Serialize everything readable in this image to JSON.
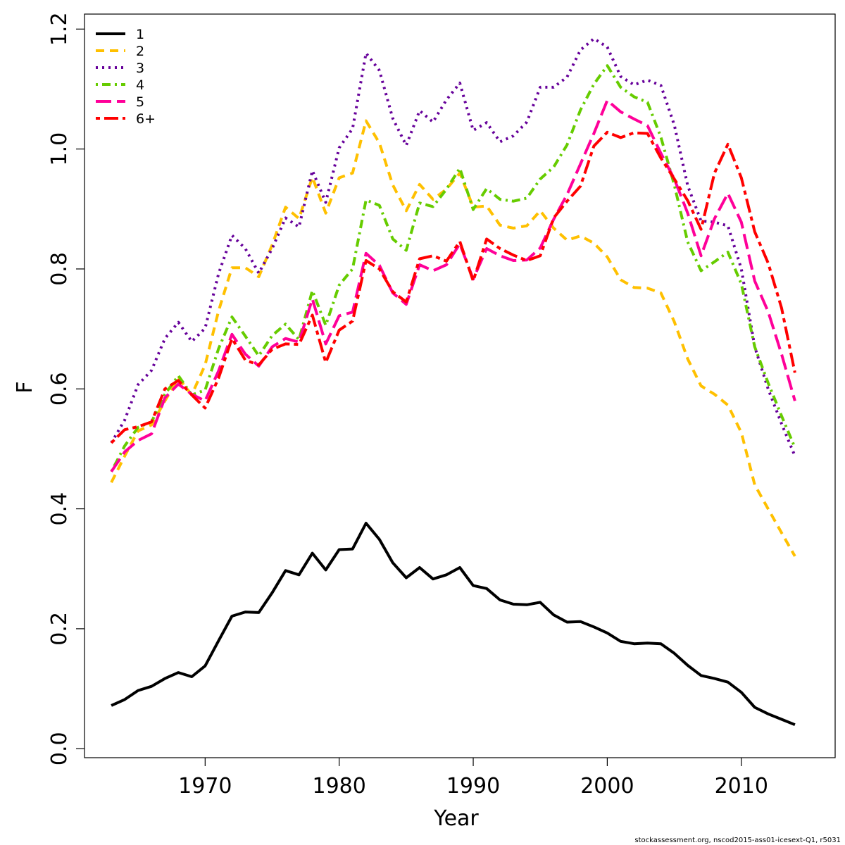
{
  "chart_data": {
    "type": "line",
    "title": "",
    "xlabel": "Year",
    "ylabel": "F",
    "xlim": [
      1961,
      2017
    ],
    "ylim": [
      -0.015,
      1.225
    ],
    "xticks": [
      1970,
      1980,
      1990,
      2000,
      2010
    ],
    "yticks": [
      0.0,
      0.2,
      0.4,
      0.6,
      0.8,
      1.0,
      1.2
    ],
    "xtick_labels": [
      "1970",
      "1980",
      "1990",
      "2000",
      "2010"
    ],
    "ytick_labels": [
      "0.0",
      "0.2",
      "0.4",
      "0.6",
      "0.8",
      "1.0",
      "1.2"
    ],
    "grid": false,
    "legend_position": "top-left",
    "x": [
      1963,
      1964,
      1965,
      1966,
      1967,
      1968,
      1969,
      1970,
      1971,
      1972,
      1973,
      1974,
      1975,
      1976,
      1977,
      1978,
      1979,
      1980,
      1981,
      1982,
      1983,
      1984,
      1985,
      1986,
      1987,
      1988,
      1989,
      1990,
      1991,
      1992,
      1993,
      1994,
      1995,
      1996,
      1997,
      1998,
      1999,
      2000,
      2001,
      2002,
      2003,
      2004,
      2005,
      2006,
      2007,
      2008,
      2009,
      2010,
      2011,
      2012,
      2013,
      2014
    ],
    "series": [
      {
        "name": "1",
        "color": "#000000",
        "dash": "solid",
        "values": [
          0.072,
          0.082,
          0.097,
          0.104,
          0.117,
          0.127,
          0.12,
          0.138,
          0.18,
          0.221,
          0.228,
          0.227,
          0.26,
          0.297,
          0.29,
          0.326,
          0.298,
          0.332,
          0.333,
          0.376,
          0.349,
          0.31,
          0.285,
          0.302,
          0.283,
          0.29,
          0.302,
          0.272,
          0.267,
          0.248,
          0.241,
          0.24,
          0.244,
          0.223,
          0.211,
          0.212,
          0.203,
          0.193,
          0.179,
          0.175,
          0.176,
          0.175,
          0.159,
          0.139,
          0.122,
          0.117,
          0.111,
          0.094,
          0.069,
          0.058,
          0.049,
          0.04
        ]
      },
      {
        "name": "2",
        "color": "#ffc000",
        "dash": "dashed",
        "values": [
          0.444,
          0.488,
          0.53,
          0.54,
          0.58,
          0.618,
          0.59,
          0.64,
          0.73,
          0.802,
          0.802,
          0.787,
          0.84,
          0.903,
          0.884,
          0.953,
          0.893,
          0.952,
          0.96,
          1.047,
          1.01,
          0.94,
          0.897,
          0.941,
          0.916,
          0.933,
          0.96,
          0.903,
          0.905,
          0.873,
          0.868,
          0.872,
          0.897,
          0.868,
          0.848,
          0.855,
          0.843,
          0.82,
          0.782,
          0.769,
          0.768,
          0.76,
          0.712,
          0.65,
          0.605,
          0.591,
          0.573,
          0.527,
          0.44,
          0.4,
          0.36,
          0.321
        ]
      },
      {
        "name": "3",
        "color": "#66009a",
        "dash": "dotted",
        "values": [
          0.51,
          0.548,
          0.607,
          0.631,
          0.684,
          0.711,
          0.679,
          0.701,
          0.792,
          0.856,
          0.834,
          0.793,
          0.834,
          0.885,
          0.87,
          0.964,
          0.911,
          1.002,
          1.034,
          1.16,
          1.131,
          1.051,
          1.006,
          1.064,
          1.045,
          1.082,
          1.11,
          1.031,
          1.044,
          1.012,
          1.022,
          1.045,
          1.103,
          1.103,
          1.12,
          1.165,
          1.184,
          1.17,
          1.121,
          1.107,
          1.115,
          1.106,
          1.04,
          0.939,
          0.88,
          0.878,
          0.872,
          0.8,
          0.67,
          0.6,
          0.542,
          0.488
        ]
      },
      {
        "name": "4",
        "color": "#66cc00",
        "dash": "dashdot",
        "values": [
          0.462,
          0.505,
          0.536,
          0.545,
          0.591,
          0.622,
          0.59,
          0.598,
          0.667,
          0.72,
          0.688,
          0.655,
          0.689,
          0.708,
          0.682,
          0.764,
          0.706,
          0.773,
          0.8,
          0.915,
          0.906,
          0.85,
          0.831,
          0.91,
          0.904,
          0.933,
          0.968,
          0.899,
          0.934,
          0.916,
          0.913,
          0.918,
          0.95,
          0.97,
          1.007,
          1.065,
          1.108,
          1.139,
          1.103,
          1.087,
          1.078,
          1.02,
          0.94,
          0.845,
          0.797,
          0.812,
          0.828,
          0.775,
          0.67,
          0.61,
          0.555,
          0.502
        ]
      },
      {
        "name": "5",
        "color": "#ff0099",
        "dash": "longdash",
        "values": [
          0.462,
          0.495,
          0.514,
          0.525,
          0.585,
          0.608,
          0.591,
          0.58,
          0.63,
          0.691,
          0.658,
          0.638,
          0.67,
          0.684,
          0.678,
          0.75,
          0.675,
          0.722,
          0.728,
          0.826,
          0.806,
          0.76,
          0.741,
          0.807,
          0.797,
          0.807,
          0.842,
          0.783,
          0.834,
          0.822,
          0.814,
          0.815,
          0.835,
          0.883,
          0.924,
          0.975,
          1.026,
          1.081,
          1.062,
          1.05,
          1.039,
          0.993,
          0.95,
          0.893,
          0.822,
          0.884,
          0.926,
          0.878,
          0.78,
          0.729,
          0.658,
          0.58
        ]
      },
      {
        "name": "6+",
        "color": "#ff0000",
        "dash": "twodash",
        "values": [
          0.51,
          0.532,
          0.537,
          0.545,
          0.6,
          0.614,
          0.59,
          0.568,
          0.618,
          0.684,
          0.648,
          0.64,
          0.666,
          0.675,
          0.674,
          0.723,
          0.644,
          0.698,
          0.713,
          0.814,
          0.8,
          0.762,
          0.745,
          0.817,
          0.822,
          0.813,
          0.846,
          0.78,
          0.85,
          0.834,
          0.823,
          0.814,
          0.822,
          0.885,
          0.913,
          0.938,
          1.005,
          1.028,
          1.019,
          1.027,
          1.026,
          0.985,
          0.95,
          0.914,
          0.866,
          0.96,
          1.008,
          0.952,
          0.862,
          0.81,
          0.735,
          0.627
        ]
      }
    ]
  },
  "footer": "stockassessment.org, nscod2015-ass01-icesext-Q1, r5031"
}
